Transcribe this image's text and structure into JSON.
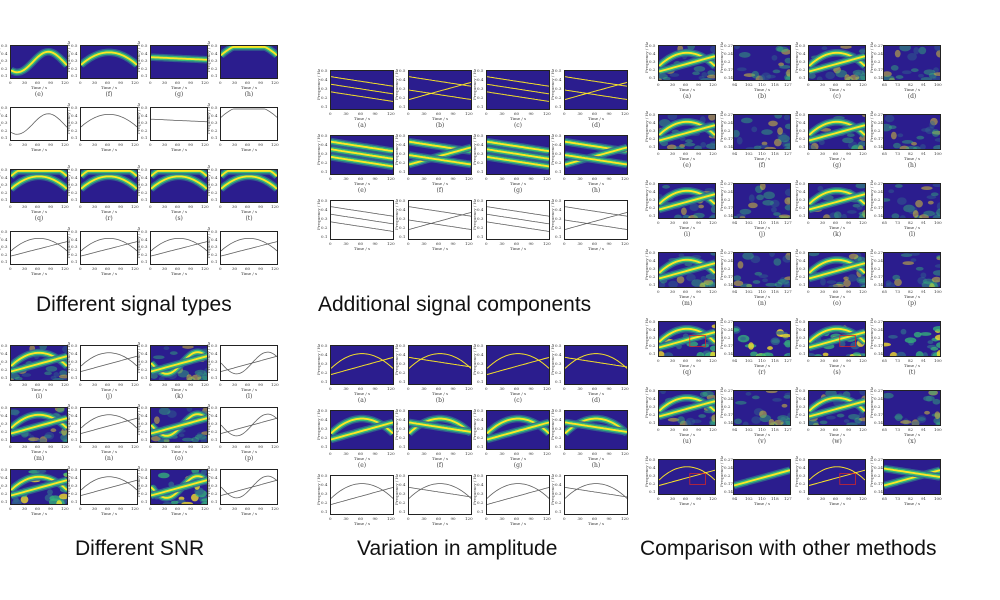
{
  "captions": {
    "signal_types": "Different signal types",
    "additional_components": "Additional signal components",
    "snr": "Different SNR",
    "amplitude": "Variation in amplitude",
    "comparison": "Comparison with other methods"
  },
  "axis": {
    "xlabel": "Time / s",
    "ylabel": "Frequency / Hz",
    "xticks_120": [
      "0",
      "30",
      "60",
      "90",
      "120"
    ],
    "yticks_05": [
      "0.5",
      "0.4",
      "0.3",
      "0.2",
      "0.1"
    ],
    "xticks_zoom_b": [
      "94",
      "102",
      "110",
      "118",
      "127"
    ],
    "xticks_zoom_d": [
      "65",
      "73",
      "82",
      "91",
      "100"
    ],
    "yticks_zoom": [
      "0.27",
      "0.24",
      "0.2",
      "0.17",
      "0.14"
    ]
  },
  "panels": {
    "signal_types": {
      "row_labels": [
        [
          "(e)",
          "(f)",
          "(g)",
          "(h)"
        ],
        [
          "",
          "",
          "",
          ""
        ],
        [
          "(q)",
          "(r)",
          "(s)",
          "(t)"
        ],
        [
          "",
          "",
          "",
          ""
        ]
      ]
    },
    "additional_components": {
      "row_labels": [
        [
          "(a)",
          "(b)",
          "(c)",
          "(d)"
        ],
        [
          "(e)",
          "(f)",
          "(g)",
          "(h)"
        ],
        [
          "",
          "",
          "",
          ""
        ]
      ]
    },
    "snr": {
      "row_labels": [
        [
          "(i)",
          "(j)",
          "(k)",
          "(l)"
        ],
        [
          "(m)",
          "(n)",
          "(o)",
          "(p)"
        ],
        [
          "",
          "",
          "",
          ""
        ]
      ]
    },
    "amplitude": {
      "row_labels": [
        [
          "(a)",
          "(b)",
          "(c)",
          "(d)"
        ],
        [
          "(e)",
          "(f)",
          "(g)",
          "(h)"
        ],
        [
          "",
          "",
          "",
          ""
        ]
      ]
    },
    "comparison": {
      "row_labels": [
        [
          "(a)",
          "(b)",
          "(c)",
          "(d)"
        ],
        [
          "(e)",
          "(f)",
          "(g)",
          "(h)"
        ],
        [
          "(i)",
          "(j)",
          "(k)",
          "(l)"
        ],
        [
          "(m)",
          "(n)",
          "(o)",
          "(p)"
        ],
        [
          "(q)",
          "(r)",
          "(s)",
          "(t)"
        ],
        [
          "(u)",
          "(v)",
          "(w)",
          "(x)"
        ],
        [
          "",
          "",
          "",
          ""
        ]
      ]
    }
  },
  "colors": {
    "background": "#2b1d8e",
    "ridge_core": "#fde725",
    "ridge_mid": "#35b779",
    "ridge_edge": "#31688e",
    "roi_box": "#d62728"
  }
}
